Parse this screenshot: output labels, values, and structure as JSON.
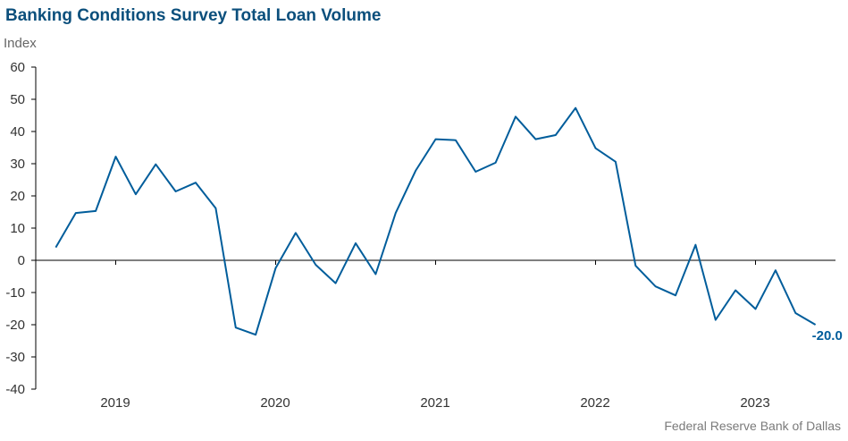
{
  "chart_data": {
    "type": "line",
    "title": "Banking Conditions Survey Total Loan Volume",
    "ylabel": "Index",
    "xlabel": "",
    "source": "Federal Reserve Bank of Dallas",
    "ylim": [
      -40,
      60
    ],
    "yticks": [
      60,
      50,
      40,
      30,
      20,
      10,
      0,
      -10,
      -20,
      -30,
      -40
    ],
    "x_tick_labels": [
      "2019",
      "2020",
      "2021",
      "2022",
      "2023"
    ],
    "x_tick_positions": [
      2019.0,
      2020.0,
      2021.0,
      2022.0,
      2023.0
    ],
    "x_label_positions": [
      2019.5,
      2020.5,
      2021.5,
      2022.5,
      2023.5
    ],
    "xlim": [
      2018.5,
      2023.5
    ],
    "line_color": "#005d9b",
    "axis_color": "#000000",
    "series": [
      {
        "x": [
          2018.625,
          2018.75,
          2018.875,
          2019.0,
          2019.125,
          2019.25,
          2019.375,
          2019.5,
          2019.625,
          2019.75,
          2019.875,
          2020.0,
          2020.125,
          2020.25,
          2020.375,
          2020.5,
          2020.625,
          2020.75,
          2020.875,
          2021.0,
          2021.125,
          2021.25,
          2021.375,
          2021.5,
          2021.625,
          2021.75,
          2021.875,
          2022.0,
          2022.125,
          2022.25,
          2022.375,
          2022.5,
          2022.625,
          2022.75,
          2022.875,
          2023.0,
          2023.125,
          2023.25,
          2023.375
        ],
        "values": [
          4.0,
          14.7,
          15.3,
          32.2,
          20.5,
          29.8,
          21.4,
          24.1,
          16.2,
          -20.9,
          -23.1,
          -2.4,
          8.5,
          -1.4,
          -7.1,
          5.3,
          -4.3,
          14.7,
          27.8,
          37.6,
          37.3,
          27.5,
          30.3,
          44.6,
          37.6,
          38.9,
          47.3,
          34.8,
          30.6,
          -1.7,
          -8.1,
          -10.9,
          4.8,
          -18.5,
          -9.3,
          -15.1,
          -3.1,
          -16.4,
          -20.0
        ]
      }
    ],
    "annotation": "-20.0"
  }
}
